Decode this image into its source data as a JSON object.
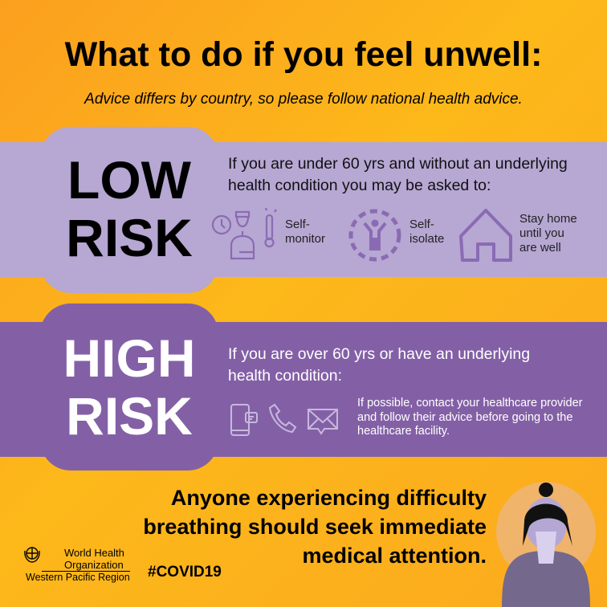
{
  "header": {
    "title": "What to do if you feel unwell:",
    "subtitle": "Advice differs by country, so please follow national health advice."
  },
  "low_risk": {
    "label_line1": "LOW",
    "label_line2": "RISK",
    "description": "If you are under 60 yrs and without an underlying health condition you may be asked to:",
    "actions": [
      {
        "icon": "self-monitor-icon",
        "label_line1": "Self-",
        "label_line2": "monitor"
      },
      {
        "icon": "self-isolate-icon",
        "label_line1": "Self-",
        "label_line2": "isolate"
      },
      {
        "icon": "house-icon",
        "label_line1": "Stay home",
        "label_line2": "until you",
        "label_line3": "are well"
      }
    ]
  },
  "high_risk": {
    "label_line1": "HIGH",
    "label_line2": "RISK",
    "description": "If you are over 60 yrs or have an underlying health condition:",
    "icons": [
      "phone-message-icon",
      "telephone-icon",
      "envelope-icon"
    ],
    "advice": "If possible, contact your healthcare provider and follow their advice before going to the healthcare facility."
  },
  "footer": {
    "message": "Anyone experiencing difficulty breathing should seek immediate medical attention.",
    "hashtag": "#COVID19",
    "org_line1": "World Health",
    "org_line2": "Organization",
    "org_line3": "Western Pacific Region"
  },
  "colors": {
    "background": "#fdb81a",
    "low_risk": "#b6a7d3",
    "high_risk": "#8360a6",
    "icon_low": "#8a6bb3",
    "icon_high": "#c7b8de"
  }
}
